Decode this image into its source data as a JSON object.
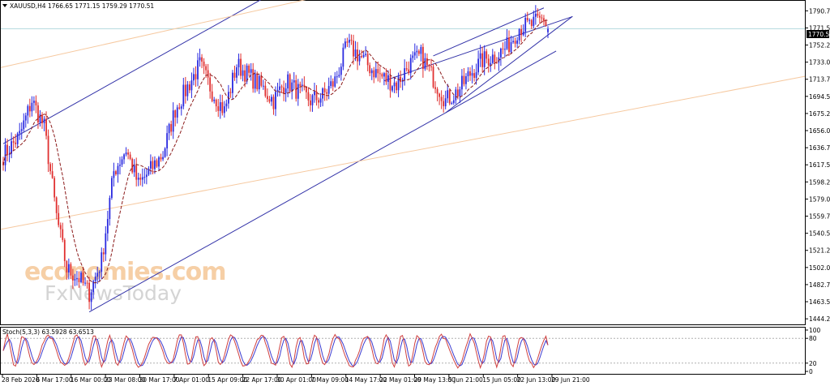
{
  "header": {
    "symbol_line": "XAUUSD,H4  1766.65 1771.15 1759.29 1770.51"
  },
  "watermark": {
    "line1": "economies.com",
    "line2": "FxNewsToday"
  },
  "colors": {
    "bull": "#2a2ae0",
    "bear": "#e03030",
    "ma": "#8b1a1a",
    "channel": "#3232a8",
    "channel_light": "#f6c9a0",
    "stoch_main": "#d04040",
    "stoch_signal": "#3a3ad0",
    "price_line": "#b7dbe0"
  },
  "chart_data": [
    {
      "type": "candlestick",
      "title": "XAUUSD,H4",
      "ohlc_last": {
        "open": 1766.65,
        "high": 1771.15,
        "low": 1759.29,
        "close": 1770.51
      },
      "current_price_label": "1770.51",
      "ylim": [
        1438,
        1802
      ],
      "y_ticks": [
        "1790.75",
        "1771.50",
        "1752.25",
        "1733.00",
        "1713.75",
        "1694.50",
        "1675.25",
        "1656.00",
        "1636.75",
        "1617.50",
        "1598.25",
        "1579.00",
        "1559.75",
        "1540.50",
        "1521.25",
        "1502.00",
        "1482.75",
        "1463.50",
        "1444.25"
      ],
      "x_ticks": [
        "28 Feb 2020",
        "6 Mar 17:00",
        "16 Mar 00:00",
        "23 Mar 08:00",
        "30 Mar 17:00",
        "7 Apr 01:00",
        "15 Apr 09:00",
        "22 Apr 17:00",
        "30 Apr 01:00",
        "7 May 09:00",
        "14 May 17:00",
        "22 May 01:00",
        "29 May 13:00",
        "5 Jun 21:00",
        "15 Jun 05:00",
        "22 Jun 13:00",
        "29 Jun 21:00"
      ],
      "price_anchors": [
        {
          "bar": 0,
          "price": 1628
        },
        {
          "bar": 8,
          "price": 1650
        },
        {
          "bar": 14,
          "price": 1690
        },
        {
          "bar": 20,
          "price": 1660
        },
        {
          "bar": 26,
          "price": 1560
        },
        {
          "bar": 31,
          "price": 1500
        },
        {
          "bar": 37,
          "price": 1490
        },
        {
          "bar": 42,
          "price": 1473
        },
        {
          "bar": 48,
          "price": 1510
        },
        {
          "bar": 54,
          "price": 1610
        },
        {
          "bar": 60,
          "price": 1635
        },
        {
          "bar": 66,
          "price": 1595
        },
        {
          "bar": 72,
          "price": 1612
        },
        {
          "bar": 78,
          "price": 1630
        },
        {
          "bar": 84,
          "price": 1680
        },
        {
          "bar": 90,
          "price": 1705
        },
        {
          "bar": 96,
          "price": 1730
        },
        {
          "bar": 102,
          "price": 1700
        },
        {
          "bar": 108,
          "price": 1678
        },
        {
          "bar": 114,
          "price": 1730
        },
        {
          "bar": 120,
          "price": 1718
        },
        {
          "bar": 126,
          "price": 1705
        },
        {
          "bar": 132,
          "price": 1690
        },
        {
          "bar": 138,
          "price": 1712
        },
        {
          "bar": 144,
          "price": 1700
        },
        {
          "bar": 150,
          "price": 1690
        },
        {
          "bar": 156,
          "price": 1695
        },
        {
          "bar": 162,
          "price": 1712
        },
        {
          "bar": 168,
          "price": 1752
        },
        {
          "bar": 174,
          "price": 1740
        },
        {
          "bar": 180,
          "price": 1725
        },
        {
          "bar": 186,
          "price": 1715
        },
        {
          "bar": 192,
          "price": 1708
        },
        {
          "bar": 198,
          "price": 1730
        },
        {
          "bar": 204,
          "price": 1740
        },
        {
          "bar": 210,
          "price": 1715
        },
        {
          "bar": 216,
          "price": 1690
        },
        {
          "bar": 222,
          "price": 1700
        },
        {
          "bar": 228,
          "price": 1720
        },
        {
          "bar": 234,
          "price": 1735
        },
        {
          "bar": 240,
          "price": 1740
        },
        {
          "bar": 246,
          "price": 1750
        },
        {
          "bar": 252,
          "price": 1772
        },
        {
          "bar": 258,
          "price": 1775
        },
        {
          "bar": 264,
          "price": 1782
        },
        {
          "bar": 266,
          "price": 1770
        }
      ],
      "moving_average_style": "dashed",
      "trend_channels": [
        {
          "name": "main channel",
          "style": "solid"
        },
        {
          "name": "short-term channel",
          "style": "solid"
        },
        {
          "name": "outer channel",
          "style": "thin light"
        }
      ]
    },
    {
      "type": "line",
      "title": "Stoch(5,3,3) 63.5928 63.6513",
      "ylim": [
        0,
        100
      ],
      "y_ticks": [
        "100",
        "80",
        "20",
        "0"
      ],
      "levels": [
        20,
        80
      ],
      "series": [
        {
          "name": "main",
          "last": 63.5928
        },
        {
          "name": "signal",
          "last": 63.6513
        }
      ]
    }
  ]
}
